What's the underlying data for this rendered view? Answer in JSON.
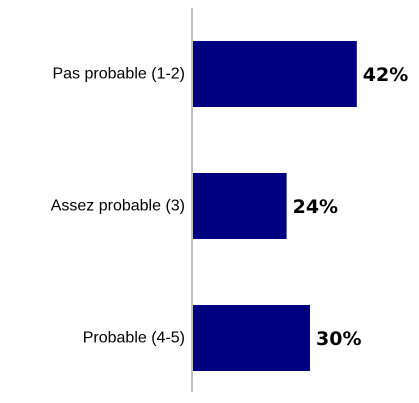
{
  "chart_data": {
    "type": "bar",
    "orientation": "horizontal",
    "categories": [
      "Pas probable (1-2)",
      "Assez probable (3)",
      "Probable (4-5)"
    ],
    "values": [
      42,
      24,
      30
    ],
    "value_labels": [
      "42%",
      "24%",
      "30%"
    ],
    "unit": "%",
    "xlim": [
      0,
      46
    ],
    "grid": false,
    "legend": "none",
    "bar_color": "#000080",
    "axis_color": "#808080"
  }
}
